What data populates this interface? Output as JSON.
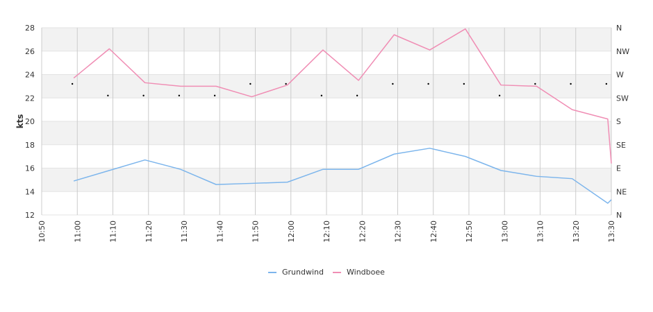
{
  "chart_data": {
    "type": "line",
    "ylabel": "kts",
    "ylim": [
      12,
      28
    ],
    "yticks": [
      "12",
      "14",
      "16",
      "18",
      "20",
      "22",
      "24",
      "26",
      "28"
    ],
    "x_ticks": [
      "10:50",
      "11:00",
      "11:10",
      "11:20",
      "11:30",
      "11:40",
      "11:50",
      "12:00",
      "12:10",
      "12:20",
      "12:30",
      "12:40",
      "12:50",
      "13:00",
      "13:10",
      "13:20",
      "13:30"
    ],
    "x_minutes": [
      650,
      660,
      670,
      680,
      690,
      700,
      710,
      720,
      730,
      740,
      750,
      760,
      770,
      780,
      790,
      800,
      810
    ],
    "xlim": [
      650,
      810
    ],
    "direction_ticks": [
      "N",
      "NE",
      "E",
      "SE",
      "S",
      "SW",
      "W",
      "NW",
      "N"
    ],
    "grid": true,
    "legend_position": "bottom",
    "series": [
      {
        "name": "Grundwind",
        "color": "#7cb5ec",
        "x": [
          659,
          669,
          679,
          689,
          699,
          709,
          719,
          729,
          739,
          749,
          759,
          769,
          779,
          789,
          799,
          809
        ],
        "values": [
          14.9,
          15.8,
          16.7,
          15.9,
          14.6,
          14.7,
          14.8,
          15.9,
          15.9,
          17.2,
          17.7,
          17.0,
          15.8,
          15.3,
          15.1,
          13.0
        ],
        "end": {
          "x": 810,
          "value": 13.3
        }
      },
      {
        "name": "Windboee",
        "color": "#f08db4",
        "x": [
          659,
          669,
          679,
          689,
          699,
          709,
          719,
          729,
          739,
          749,
          759,
          769,
          779,
          789,
          799,
          809
        ],
        "values": [
          23.7,
          26.2,
          23.3,
          23.0,
          23.0,
          22.1,
          23.1,
          26.1,
          23.5,
          27.4,
          26.1,
          27.9,
          23.1,
          23.0,
          21.0,
          20.2
        ],
        "end": {
          "x": 810,
          "value": 16.4
        }
      }
    ],
    "direction_points": {
      "x": [
        659,
        669,
        679,
        689,
        699,
        709,
        719,
        729,
        739,
        749,
        759,
        769,
        779,
        789,
        799,
        809
      ],
      "values": [
        23.2,
        22.2,
        22.2,
        22.2,
        22.2,
        23.2,
        23.2,
        22.2,
        22.2,
        23.2,
        23.2,
        23.2,
        22.2,
        23.2,
        23.2,
        23.2
      ]
    }
  }
}
